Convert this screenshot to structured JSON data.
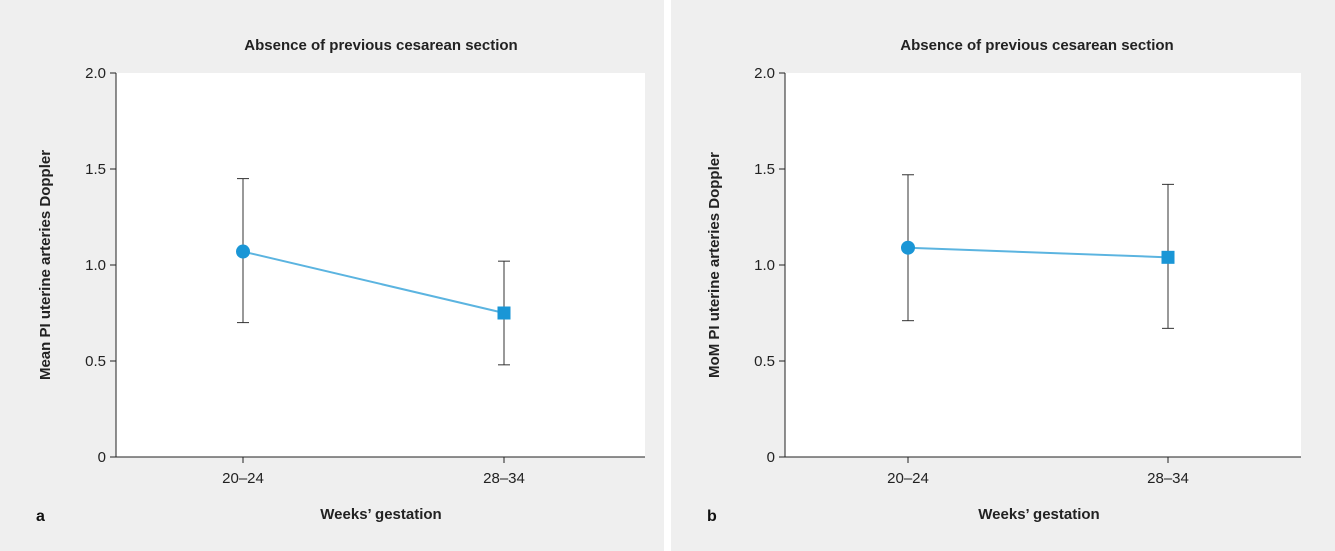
{
  "chart_data": [
    {
      "type": "line",
      "panel_label": "a",
      "title": "Absence of previous cesarean section",
      "xlabel": "Weeks’ gestation",
      "ylabel": "Mean PI uterine arteries Doppler",
      "categories": [
        "20–24",
        "28–34"
      ],
      "values": [
        1.07,
        0.75
      ],
      "error_low": [
        0.7,
        0.48
      ],
      "error_high": [
        1.45,
        1.02
      ],
      "markers": [
        "circle",
        "square"
      ],
      "ylim": [
        0,
        2.0
      ],
      "yticks": [
        0,
        0.5,
        1.0,
        1.5,
        2.0
      ],
      "ytick_labels": [
        "0",
        "0.5",
        "1.0",
        "1.5",
        "2.0"
      ],
      "grid": false,
      "line_color": "#5bb4e0",
      "marker_color": "#1a96d6",
      "error_color": "#333333"
    },
    {
      "type": "line",
      "panel_label": "b",
      "title": "Absence of previous cesarean section",
      "xlabel": "Weeks’ gestation",
      "ylabel": "MoM PI uterine arteries Doppler",
      "categories": [
        "20–24",
        "28–34"
      ],
      "values": [
        1.09,
        1.04
      ],
      "error_low": [
        0.71,
        0.67
      ],
      "error_high": [
        1.47,
        1.42
      ],
      "markers": [
        "circle",
        "square"
      ],
      "ylim": [
        0,
        2.0
      ],
      "yticks": [
        0,
        0.5,
        1.0,
        1.5,
        2.0
      ],
      "ytick_labels": [
        "0",
        "0.5",
        "1.0",
        "1.5",
        "2.0"
      ],
      "grid": false,
      "line_color": "#5bb4e0",
      "marker_color": "#1a96d6",
      "error_color": "#333333"
    }
  ]
}
